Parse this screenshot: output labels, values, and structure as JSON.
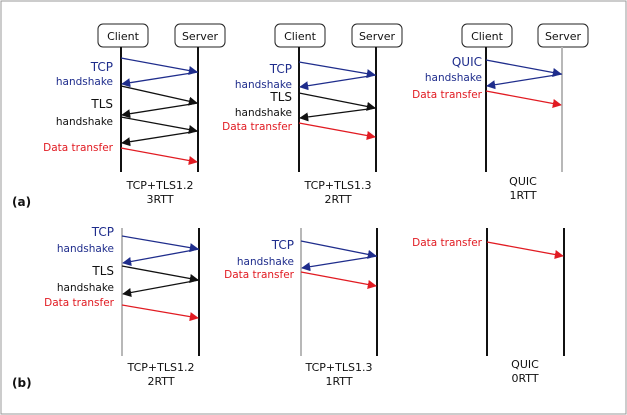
{
  "colors": {
    "tcp": "#1f2d8c",
    "tls": "#111111",
    "data": "#e11b22",
    "gray_line": "#b8b8b8",
    "frame": "#999999"
  },
  "panels": [
    {
      "id": "a",
      "label": "(a)"
    },
    {
      "id": "b",
      "label": "(b)"
    }
  ],
  "diagrams": [
    {
      "panel": "a",
      "client": "Client",
      "server": "Server",
      "caption": [
        "TCP+TLS1.2",
        "3RTT"
      ],
      "labels": [
        {
          "text": "TCP",
          "kind": "tcp"
        },
        {
          "text": "handshake",
          "kind": "tcp"
        },
        {
          "text": "TLS",
          "kind": "tls"
        },
        {
          "text": "handshake",
          "kind": "tls"
        },
        {
          "text": "Data transfer",
          "kind": "data"
        }
      ]
    },
    {
      "panel": "a",
      "client": "Client",
      "server": "Server",
      "caption": [
        "TCP+TLS1.3",
        "2RTT"
      ],
      "labels": [
        {
          "text": "TCP",
          "kind": "tcp"
        },
        {
          "text": "handshake",
          "kind": "tcp"
        },
        {
          "text": "TLS",
          "kind": "tls"
        },
        {
          "text": "handshake",
          "kind": "tls"
        },
        {
          "text": "Data transfer",
          "kind": "data"
        }
      ]
    },
    {
      "panel": "a",
      "client": "Client",
      "server": "Server",
      "caption": [
        "QUIC",
        "1RTT"
      ],
      "labels": [
        {
          "text": "QUIC",
          "kind": "tcp"
        },
        {
          "text": "handshake",
          "kind": "tcp"
        },
        {
          "text": "Data transfer",
          "kind": "data"
        }
      ]
    },
    {
      "panel": "b",
      "client": "",
      "server": "",
      "caption": [
        "TCP+TLS1.2",
        "2RTT"
      ],
      "labels": [
        {
          "text": "TCP",
          "kind": "tcp"
        },
        {
          "text": "handshake",
          "kind": "tcp"
        },
        {
          "text": "TLS",
          "kind": "tls"
        },
        {
          "text": "handshake",
          "kind": "tls"
        },
        {
          "text": "Data transfer",
          "kind": "data"
        }
      ]
    },
    {
      "panel": "b",
      "client": "",
      "server": "",
      "caption": [
        "TCP+TLS1.3",
        "1RTT"
      ],
      "labels": [
        {
          "text": "TCP",
          "kind": "tcp"
        },
        {
          "text": "handshake",
          "kind": "tcp"
        },
        {
          "text": "Data transfer",
          "kind": "data"
        }
      ]
    },
    {
      "panel": "b",
      "client": "",
      "server": "",
      "caption": [
        "QUIC",
        "0RTT"
      ],
      "labels": [
        {
          "text": "Data transfer",
          "kind": "data"
        }
      ]
    }
  ]
}
